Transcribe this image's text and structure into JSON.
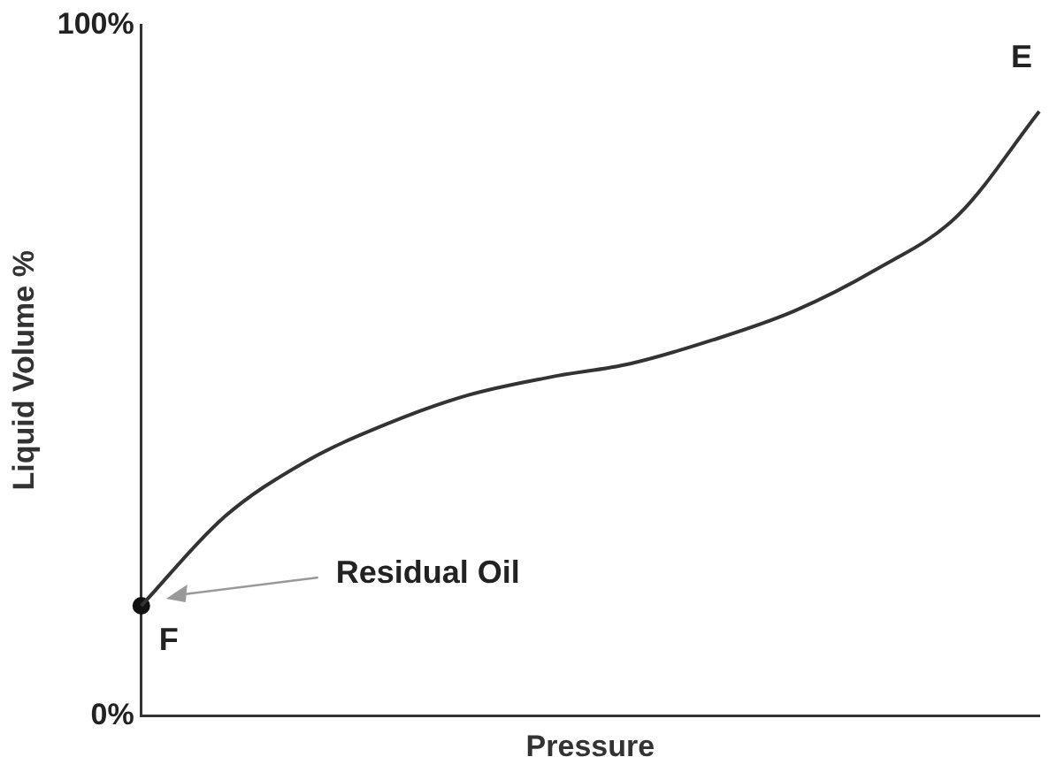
{
  "chart_data": {
    "type": "line",
    "xlabel": "Pressure",
    "ylabel": "Liquid Volume %",
    "categories": [
      null,
      null,
      null,
      null,
      null,
      null,
      null,
      null,
      null,
      null,
      null,
      null
    ],
    "series": [
      {
        "color": "#333333",
        "values": [
          15.9,
          28.6,
          36.7,
          42.2,
          46.4,
          49.0,
          51.0,
          54.4,
          58.6,
          64.6,
          72.4,
          87.5
        ]
      },
      {
        "type": "scatter",
        "color": "#111111",
        "values": [
          15.9,
          null,
          null,
          null,
          null,
          null,
          null,
          null,
          null,
          null,
          null,
          null
        ]
      }
    ],
    "ylim": [
      0,
      100
    ],
    "yticks": [
      {
        "value": 0,
        "label": "0%"
      },
      {
        "value": 100,
        "label": "100%"
      }
    ],
    "grid": false,
    "legend": false,
    "line_style": "solid",
    "annotations": [
      "E",
      "F",
      "Residual Oil"
    ]
  }
}
